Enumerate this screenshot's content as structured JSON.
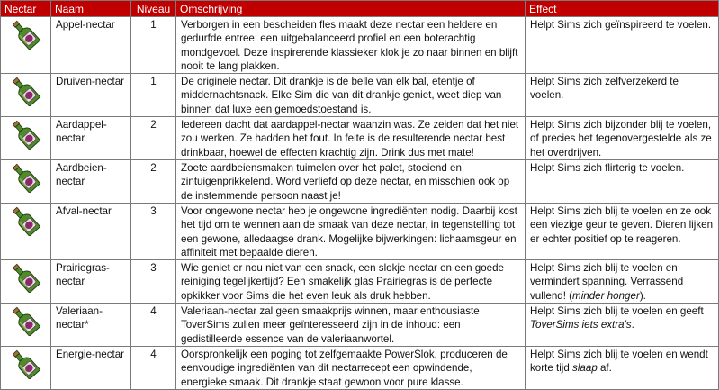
{
  "colors": {
    "header_bg": "#c00000",
    "header_text": "#ffffff",
    "border": "#7a7a7a",
    "bottle": "#4f8a2b",
    "label": "#8b2a6b"
  },
  "headers": {
    "nectar": "Nectar",
    "name": "Naam",
    "level": "Niveau",
    "description": "Omschrijving",
    "effect": "Effect"
  },
  "rows": [
    {
      "icon": "nectar-bottle-icon",
      "name": "Appel-nectar",
      "level": "1",
      "description": "Verborgen in een bescheiden fles maakt deze nectar een heldere en gedurfde entree: een uitgebalanceerd profiel en een boterachtig mondgevoel. Deze inspirerende klassieker klok je zo naar binnen en blijft nooit te lang plakken.",
      "effect": [
        {
          "t": "Helpt Sims zich geïnspireerd te voelen."
        }
      ]
    },
    {
      "icon": "nectar-bottle-icon",
      "name": "Druiven-nectar",
      "level": "1",
      "description": "De originele nectar. Dit drankje is de belle van elk bal, etentje of middernachtsnack. Elke Sim die van dit drankje geniet, weet diep van binnen dat luxe een gemoedstoestand is.",
      "effect": [
        {
          "t": "Helpt Sims zich zelfverzekerd te voelen."
        }
      ]
    },
    {
      "icon": "nectar-bottle-icon",
      "name": "Aardappel-nectar",
      "level": "2",
      "description": "Iedereen dacht dat aardappel-nectar waanzin was. Ze zeiden dat het niet zou werken. Ze hadden het fout. In feite is de resulterende nectar best drinkbaar, hoewel de effecten krachtig zijn. Drink dus met mate!",
      "effect": [
        {
          "t": "Helpt Sims zich bijzonder blij te voelen, of precies het tegenovergestelde als ze het overdrijven."
        }
      ]
    },
    {
      "icon": "nectar-bottle-icon",
      "name": "Aardbeien-nectar",
      "level": "2",
      "description": "Zoete aardbeiensmaken tuimelen over het palet, stoeiend en zintuigenprikkelend. Word verliefd op deze nectar, en misschien ook op de instemmende persoon naast je!",
      "effect": [
        {
          "t": "Helpt Sims zich flirterig te voelen."
        }
      ]
    },
    {
      "icon": "nectar-bottle-icon",
      "name": "Afval-nectar",
      "level": "3",
      "description": "Voor ongewone nectar heb je ongewone ingrediënten nodig. Daarbij kost het tijd om te wennen aan de smaak van deze nectar, in tegenstelling tot een gewone, alledaagse drank. Mogelijke bijwerkingen: lichaamsgeur en affiniteit met bepaalde dieren.",
      "effect": [
        {
          "t": "Helpt Sims zich blij te voelen en ze ook een viezige geur te geven. Dieren lijken er echter positief op te reageren."
        }
      ]
    },
    {
      "icon": "nectar-bottle-icon",
      "name": "Prairiegras-nectar",
      "level": "3",
      "description": "Wie geniet er nou niet van een snack, een slokje nectar en een goede reiniging tegelijkertijd? Een smakelijk glas Prairiegras is de perfecte opkikker voor Sims die het even leuk als druk hebben.",
      "effect": [
        {
          "t": "Helpt Sims zich blij te voelen en vermindert spanning. Verrassend vullend! ("
        },
        {
          "t": "minder honger",
          "i": true
        },
        {
          "t": ")."
        }
      ]
    },
    {
      "icon": "nectar-bottle-icon",
      "name": "Valeriaan-nectar*",
      "level": "4",
      "description": "Valeriaan-nectar zal geen smaakprijs winnen, maar enthousiaste ToverSims zullen meer geïnteresseerd zijn in de inhoud: een gedistilleerde essence van de valeriaanwortel.",
      "effect": [
        {
          "t": "Helpt Sims zich blij te voelen en geeft "
        },
        {
          "t": "ToverSims iets extra's",
          "i": true
        },
        {
          "t": "."
        }
      ]
    },
    {
      "icon": "nectar-bottle-icon",
      "name": "Energie-nectar",
      "level": "4",
      "description": "Oorspronkelijk een poging tot zelfgemaakte PowerSlok, produceren de eenvoudige ingrediënten van dit nectarrecept een opwindende, energieke smaak. Dit drankje staat gewoon voor pure klasse.",
      "effect": [
        {
          "t": "Helpt Sims zich blij te voelen en wendt korte tijd "
        },
        {
          "t": "slaap",
          "i": true
        },
        {
          "t": " af."
        }
      ]
    }
  ]
}
